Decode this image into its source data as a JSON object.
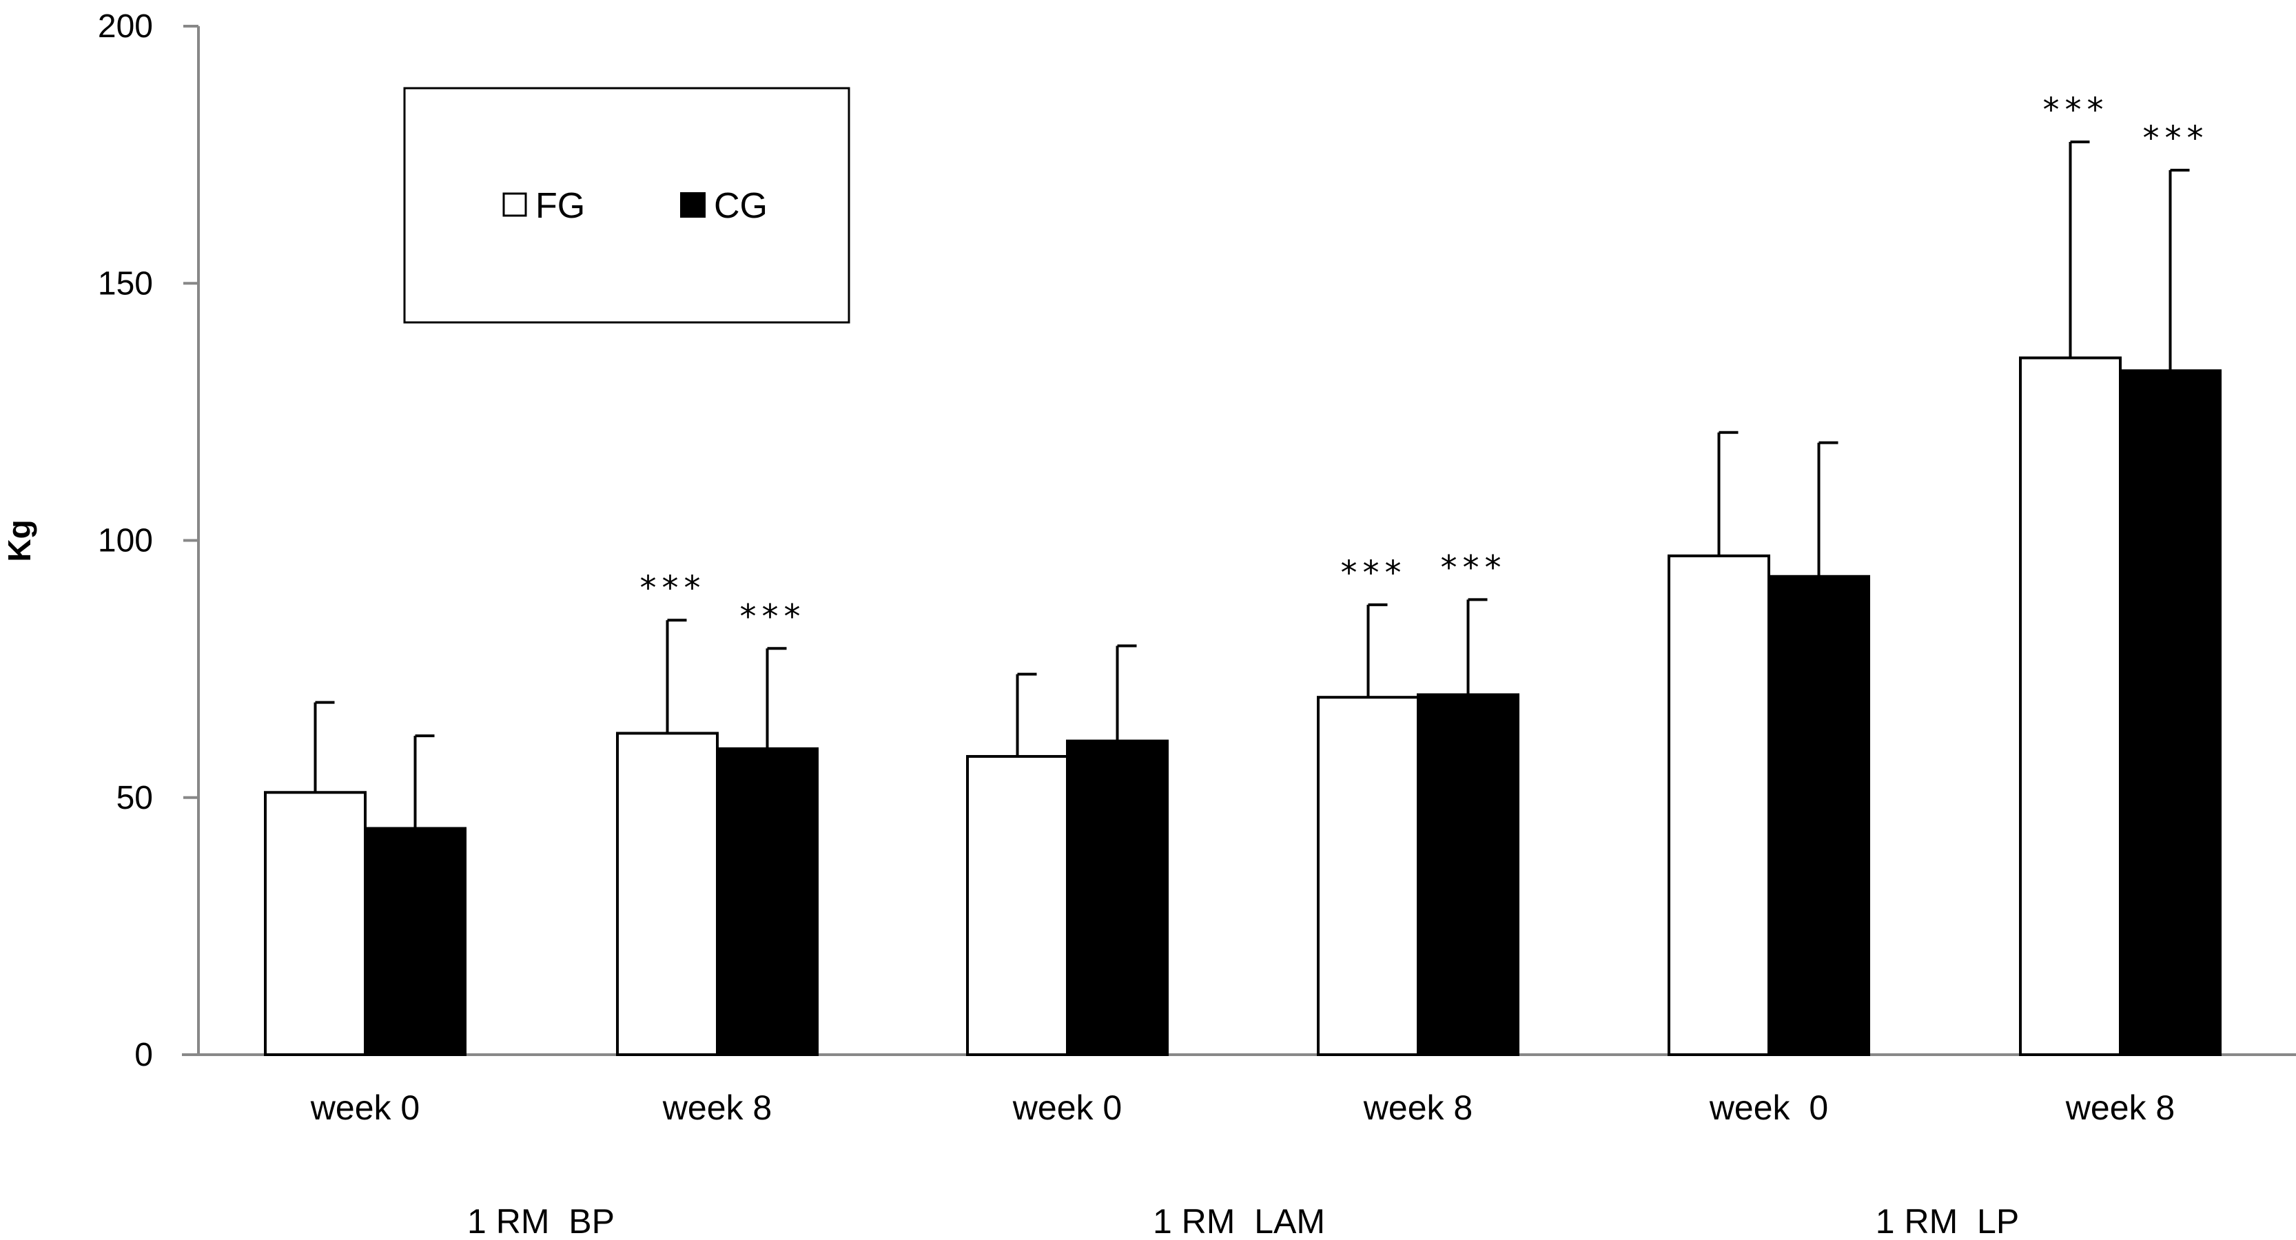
{
  "chart_data": {
    "type": "bar",
    "title": "",
    "xlabel": "",
    "ylabel": "Kg",
    "ylim": [
      0,
      200
    ],
    "yticks": [
      0,
      50,
      100,
      150,
      200
    ],
    "grid": false,
    "legend_position": "top-left",
    "categories": [
      "week 0",
      "week 8",
      "week 0",
      "week 8",
      "week  0",
      "week 8"
    ],
    "groups": [
      {
        "label": "1 RM  BP",
        "categories": [
          0,
          1
        ]
      },
      {
        "label": "1 RM  LAM",
        "categories": [
          2,
          3
        ]
      },
      {
        "label": "1 RM  LP",
        "categories": [
          4,
          5
        ]
      }
    ],
    "series": [
      {
        "name": "FG",
        "color": "#ffffff",
        "stroke": "#000000",
        "values": [
          51,
          62.5,
          58,
          69.5,
          97,
          135.5
        ],
        "error": [
          17.5,
          22,
          16,
          18,
          24,
          42
        ],
        "significance": [
          "",
          "***",
          "",
          "***",
          "",
          "***"
        ]
      },
      {
        "name": "CG",
        "color": "#000000",
        "stroke": "#000000",
        "values": [
          44,
          59.5,
          61,
          70,
          93,
          133
        ],
        "error": [
          18,
          19.5,
          18.5,
          18.5,
          26,
          39
        ],
        "significance": [
          "",
          "***",
          "",
          "***",
          "",
          "***"
        ]
      }
    ]
  }
}
